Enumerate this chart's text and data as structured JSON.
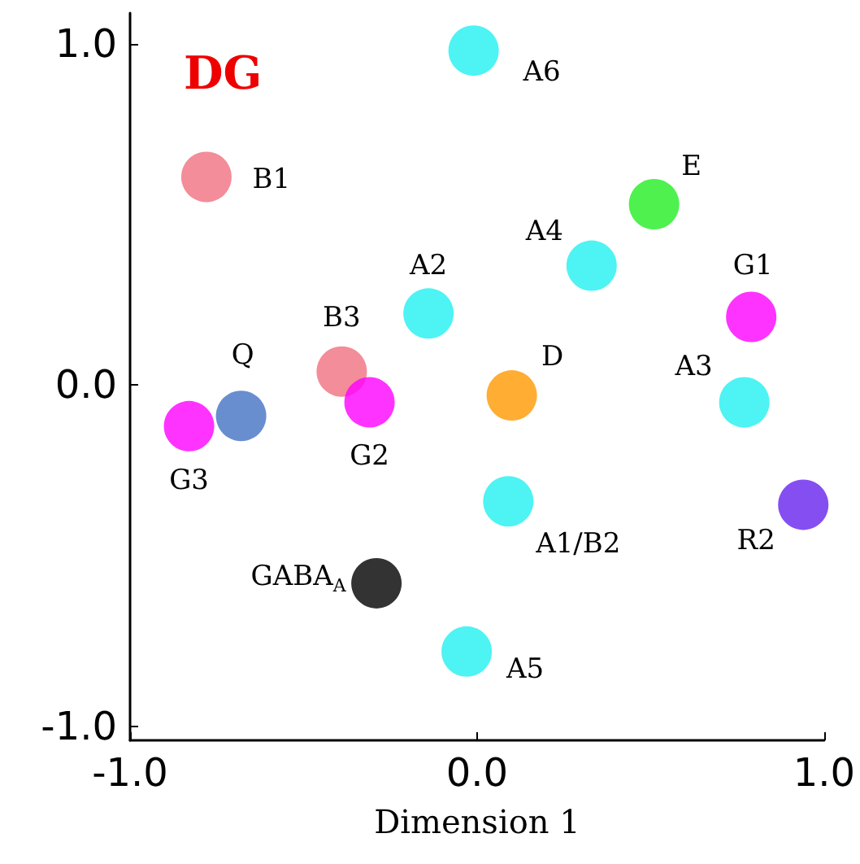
{
  "chart_data": {
    "type": "scatter",
    "title": "DG",
    "xlabel": "Dimension 1",
    "x": [
      -0.01,
      -0.78,
      0.51,
      0.33,
      -0.14,
      0.79,
      -0.39,
      -0.31,
      0.1,
      0.77,
      -0.68,
      -0.83,
      0.94,
      0.09,
      -0.29,
      -0.03
    ],
    "values": [
      0.98,
      0.61,
      0.53,
      0.35,
      0.21,
      0.2,
      0.04,
      -0.05,
      -0.03,
      -0.05,
      -0.09,
      -0.12,
      -0.35,
      -0.34,
      -0.58,
      -0.78
    ],
    "colors": [
      "#22f0f0",
      "#f07080",
      "#22ee22",
      "#22f0f0",
      "#22f0f0",
      "#ff00ff",
      "#f07080",
      "#ff00ff",
      "#ff9900",
      "#22f0f0",
      "#4472c4",
      "#ff00ff",
      "#6622ee",
      "#22f0f0",
      "#000000",
      "#22f0f0"
    ],
    "annotations": [
      {
        "text": "A6",
        "x": -0.01,
        "y": 0.98
      },
      {
        "text": "B1",
        "x": -0.78,
        "y": 0.61
      },
      {
        "text": "E",
        "x": 0.51,
        "y": 0.53
      },
      {
        "text": "A4",
        "x": 0.33,
        "y": 0.35
      },
      {
        "text": "A2",
        "x": -0.14,
        "y": 0.21
      },
      {
        "text": "G1",
        "x": 0.79,
        "y": 0.2
      },
      {
        "text": "B3",
        "x": -0.39,
        "y": 0.04
      },
      {
        "text": "G2",
        "x": -0.31,
        "y": -0.05
      },
      {
        "text": "D",
        "x": 0.1,
        "y": -0.03
      },
      {
        "text": "A3",
        "x": 0.77,
        "y": -0.05
      },
      {
        "text": "Q",
        "x": -0.68,
        "y": -0.09
      },
      {
        "text": "G3",
        "x": -0.83,
        "y": -0.12
      },
      {
        "text": "R2",
        "x": 0.94,
        "y": -0.35
      },
      {
        "text": "A1/B2",
        "x": 0.09,
        "y": -0.34
      },
      {
        "text": "GABA$_{A}$",
        "x": -0.29,
        "y": -0.58
      },
      {
        "text": "A5",
        "x": -0.03,
        "y": -0.78
      }
    ],
    "xlim": [
      -1.0,
      1.0
    ],
    "ylim": [
      -1.04,
      1.09
    ],
    "xticks": [
      {
        "value": -1,
        "label": "-1.0"
      },
      {
        "value": 0,
        "label": "0.0"
      },
      {
        "value": 1,
        "label": "1.0"
      }
    ],
    "yticks": [
      {
        "value": -1,
        "label": "-1.0"
      },
      {
        "value": 0,
        "label": "0.0"
      },
      {
        "value": 1,
        "label": "1.0"
      }
    ],
    "grid": false,
    "marker": "circle"
  }
}
